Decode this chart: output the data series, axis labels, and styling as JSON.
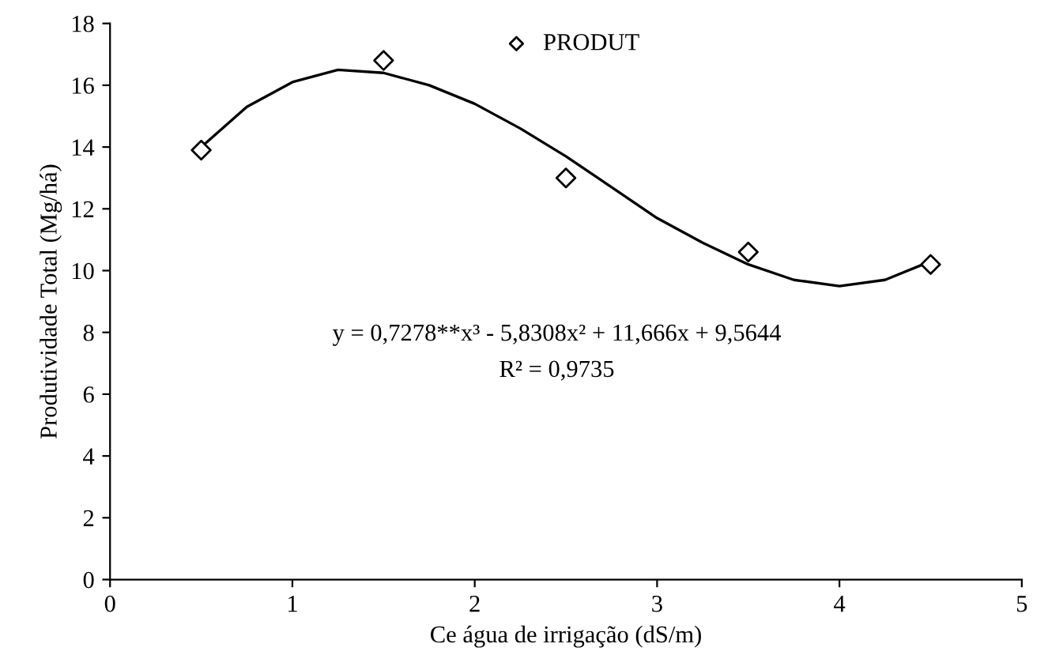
{
  "chart_data": {
    "type": "scatter",
    "xlabel": "Ce água de irrigação (dS/m)",
    "ylabel": "Produtividade Total (Mg/há)",
    "xlim": [
      0,
      5
    ],
    "xticks": [
      0,
      1,
      2,
      3,
      4,
      5
    ],
    "ylim": [
      0,
      18
    ],
    "yticks": [
      0,
      2,
      4,
      6,
      8,
      10,
      12,
      14,
      16,
      18
    ],
    "grid": false,
    "legend": "top",
    "series": [
      {
        "name": "PRODUT",
        "marker": "diamond",
        "color": "#000000",
        "x": [
          0.5,
          1.5,
          2.5,
          3.5,
          4.5
        ],
        "values": [
          13.9,
          16.8,
          13.0,
          10.6,
          10.2
        ]
      },
      {
        "type": "line",
        "marker": "none",
        "color": "#000000",
        "line_style": "solid",
        "x": [
          0.5,
          0.75,
          1.0,
          1.25,
          1.5,
          1.75,
          2.0,
          2.25,
          2.5,
          2.75,
          3.0,
          3.25,
          3.5,
          3.75,
          4.0,
          4.25,
          4.5
        ],
        "values": [
          14.0,
          15.3,
          16.1,
          16.5,
          16.4,
          16.0,
          15.4,
          14.6,
          13.7,
          12.7,
          11.7,
          10.9,
          10.2,
          9.7,
          9.5,
          9.7,
          10.3
        ]
      }
    ],
    "annotations": [
      "y = 0,7278**x³ - 5,8308x² + 11,666x + 9,5644",
      "R² = 0,9735"
    ]
  }
}
